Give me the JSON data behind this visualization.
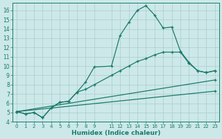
{
  "xlabel": "Humidex (Indice chaleur)",
  "bg_color": "#cce8e8",
  "line_color": "#1a7a6a",
  "grid_color": "#aacccc",
  "xlim": [
    -0.5,
    23.5
  ],
  "ylim": [
    4,
    16.8
  ],
  "yticks": [
    4,
    5,
    6,
    7,
    8,
    9,
    10,
    11,
    12,
    13,
    14,
    15,
    16
  ],
  "xticks": [
    0,
    1,
    2,
    3,
    4,
    5,
    6,
    7,
    8,
    9,
    11,
    12,
    13,
    14,
    15,
    16,
    17,
    18,
    19,
    20,
    21,
    22,
    23
  ],
  "line1_x": [
    0,
    1,
    2,
    3,
    4,
    5,
    6,
    7,
    8,
    9,
    11,
    12,
    13,
    14,
    15,
    16,
    17,
    18,
    19,
    20,
    21,
    22,
    23
  ],
  "line1_y": [
    5.1,
    4.85,
    5.0,
    4.45,
    5.5,
    6.1,
    6.2,
    7.2,
    8.3,
    9.9,
    10.0,
    13.3,
    14.7,
    16.0,
    16.5,
    15.5,
    14.1,
    14.2,
    11.6,
    10.4,
    9.5,
    9.3,
    9.5
  ],
  "line2_x": [
    0,
    1,
    2,
    3,
    4,
    5,
    6,
    7,
    8,
    9,
    11,
    12,
    13,
    14,
    15,
    16,
    17,
    18,
    19,
    20,
    21,
    22,
    23
  ],
  "line2_y": [
    5.1,
    4.85,
    5.0,
    4.45,
    5.5,
    6.1,
    6.2,
    7.2,
    7.5,
    8.0,
    9.0,
    9.5,
    10.0,
    10.5,
    10.8,
    11.2,
    11.5,
    11.5,
    11.5,
    10.3,
    9.5,
    9.3,
    9.5
  ],
  "line3_x": [
    0,
    23
  ],
  "line3_y": [
    5.1,
    8.5
  ],
  "line4_x": [
    0,
    23
  ],
  "line4_y": [
    5.1,
    7.3
  ]
}
